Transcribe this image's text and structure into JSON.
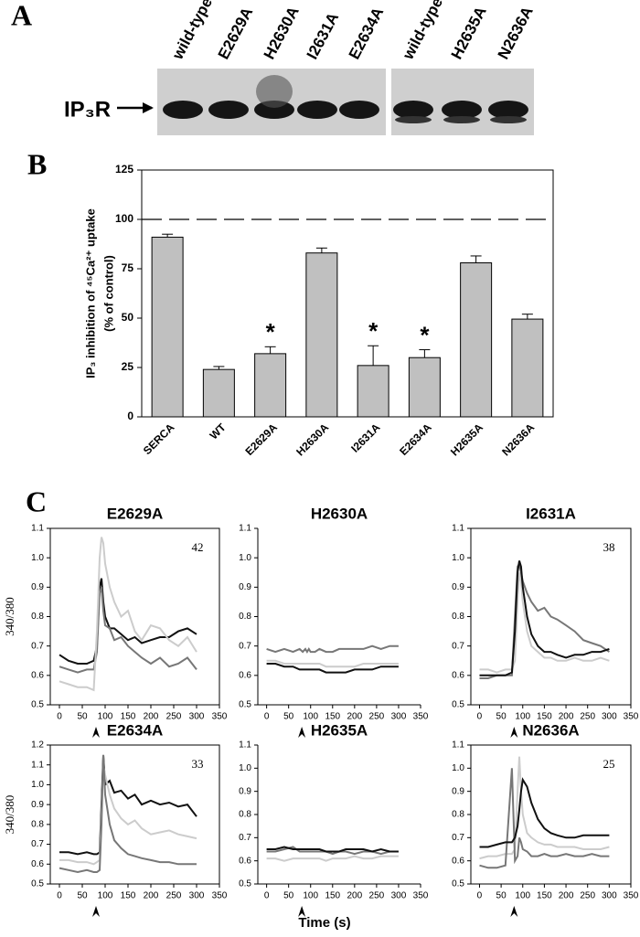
{
  "panel_a": {
    "label": "A",
    "lanes": [
      "wild-type",
      "E2629A",
      "H2630A",
      "I2631A",
      "E2634A",
      "wild-type",
      "H2635A",
      "N2636A"
    ],
    "band_label": "IP₃R"
  },
  "panel_c": {
    "label": "C",
    "x_label": "Time (s)"
  },
  "chart_data": [
    {
      "type": "bar",
      "panel_label": "B",
      "ylabel": [
        "IP₃ inhibition of ⁴⁵Ca²⁺ uptake",
        "(% of control)"
      ],
      "categories": [
        "SERCA",
        "WT",
        "E2629A",
        "H2630A",
        "I2631A",
        "E2634A",
        "H2635A",
        "N2636A"
      ],
      "values": [
        91,
        24,
        32,
        83,
        26,
        30,
        78,
        49.5
      ],
      "errors": [
        1.5,
        1.5,
        3.5,
        2.5,
        10,
        4,
        3.5,
        2.5
      ],
      "significant": [
        false,
        false,
        true,
        false,
        true,
        true,
        false,
        false
      ],
      "significance_label": "*",
      "reference_line": 100,
      "color": "#c0c0c0",
      "ylim": [
        0,
        125
      ],
      "yticks": [
        0,
        25,
        50,
        75,
        100,
        125
      ]
    },
    {
      "type": "line",
      "title": "E2629A",
      "ylabel": "340/380",
      "annotation": "42",
      "frame": true,
      "stimulus": 80,
      "x": [
        0,
        20,
        40,
        60,
        75,
        82,
        88,
        92,
        96,
        100,
        110,
        120,
        135,
        150,
        165,
        180,
        200,
        220,
        240,
        260,
        280,
        300
      ],
      "series": [
        {
          "color": "#111111",
          "values": [
            0.67,
            0.65,
            0.64,
            0.64,
            0.65,
            0.7,
            0.9,
            0.93,
            0.85,
            0.8,
            0.76,
            0.76,
            0.74,
            0.72,
            0.73,
            0.71,
            0.72,
            0.73,
            0.73,
            0.75,
            0.76,
            0.74
          ]
        },
        {
          "color": "#777777",
          "values": [
            0.63,
            0.62,
            0.61,
            0.62,
            0.62,
            0.68,
            0.88,
            0.9,
            0.82,
            0.77,
            0.76,
            0.72,
            0.73,
            0.7,
            0.68,
            0.66,
            0.64,
            0.66,
            0.63,
            0.64,
            0.66,
            0.62
          ]
        },
        {
          "color": "#cccccc",
          "values": [
            0.58,
            0.57,
            0.56,
            0.56,
            0.55,
            0.75,
            1.0,
            1.07,
            1.05,
            0.98,
            0.9,
            0.85,
            0.8,
            0.82,
            0.75,
            0.72,
            0.77,
            0.76,
            0.72,
            0.7,
            0.73,
            0.68
          ]
        }
      ],
      "xlim": [
        -20,
        350
      ],
      "xticks": [
        0,
        50,
        100,
        150,
        200,
        250,
        300,
        350
      ],
      "ylim": [
        0.5,
        1.1
      ],
      "yticks": [
        0.5,
        0.6,
        0.7,
        0.8,
        0.9,
        {
          "value": 1,
          "label": "1.0"
        },
        1.1
      ]
    },
    {
      "type": "line",
      "title": "H2630A",
      "frame": false,
      "stimulus": 80,
      "x": [
        0,
        20,
        40,
        60,
        75,
        82,
        88,
        92,
        96,
        100,
        110,
        120,
        135,
        150,
        165,
        180,
        200,
        220,
        240,
        260,
        280,
        300
      ],
      "series": [
        {
          "color": "#777777",
          "values": [
            0.69,
            0.68,
            0.69,
            0.68,
            0.69,
            0.68,
            0.69,
            0.68,
            0.69,
            0.68,
            0.68,
            0.69,
            0.68,
            0.68,
            0.69,
            0.69,
            0.69,
            0.69,
            0.7,
            0.69,
            0.7,
            0.7
          ]
        },
        {
          "color": "#cccccc",
          "values": [
            0.65,
            0.65,
            0.64,
            0.64,
            0.64,
            0.64,
            0.64,
            0.64,
            0.64,
            0.64,
            0.64,
            0.64,
            0.63,
            0.63,
            0.63,
            0.63,
            0.63,
            0.64,
            0.64,
            0.64,
            0.64,
            0.64
          ]
        },
        {
          "color": "#111111",
          "values": [
            0.64,
            0.64,
            0.63,
            0.63,
            0.62,
            0.62,
            0.62,
            0.62,
            0.62,
            0.62,
            0.62,
            0.62,
            0.61,
            0.61,
            0.61,
            0.61,
            0.62,
            0.62,
            0.62,
            0.63,
            0.63,
            0.63
          ]
        }
      ],
      "xlim": [
        -20,
        350
      ],
      "xticks": [
        0,
        50,
        100,
        150,
        200,
        250,
        300,
        350
      ],
      "ylim": [
        0.5,
        1.1
      ],
      "yticks": [
        0.5,
        0.6,
        0.7,
        0.8,
        0.9,
        {
          "value": 1,
          "label": "1.0"
        },
        1.1
      ]
    },
    {
      "type": "line",
      "title": "I2631A",
      "annotation": "38",
      "frame": true,
      "stimulus": 80,
      "x": [
        0,
        20,
        40,
        60,
        75,
        82,
        88,
        92,
        96,
        100,
        110,
        120,
        135,
        150,
        165,
        180,
        200,
        220,
        240,
        260,
        280,
        300
      ],
      "series": [
        {
          "color": "#cccccc",
          "values": [
            0.62,
            0.62,
            0.61,
            0.62,
            0.62,
            0.65,
            0.85,
            0.95,
            0.92,
            0.85,
            0.75,
            0.7,
            0.68,
            0.66,
            0.66,
            0.65,
            0.65,
            0.66,
            0.65,
            0.65,
            0.66,
            0.65
          ]
        },
        {
          "color": "#777777",
          "values": [
            0.59,
            0.59,
            0.6,
            0.6,
            0.6,
            0.8,
            0.97,
            0.98,
            0.95,
            0.92,
            0.88,
            0.85,
            0.82,
            0.83,
            0.8,
            0.79,
            0.77,
            0.75,
            0.72,
            0.71,
            0.7,
            0.68
          ]
        },
        {
          "color": "#111111",
          "values": [
            0.6,
            0.6,
            0.6,
            0.6,
            0.61,
            0.75,
            0.95,
            0.99,
            0.97,
            0.9,
            0.8,
            0.74,
            0.7,
            0.68,
            0.68,
            0.67,
            0.66,
            0.67,
            0.67,
            0.68,
            0.68,
            0.69
          ]
        }
      ],
      "xlim": [
        -20,
        350
      ],
      "xticks": [
        0,
        50,
        100,
        150,
        200,
        250,
        300,
        350
      ],
      "ylim": [
        0.5,
        1.1
      ],
      "yticks": [
        0.5,
        0.6,
        0.7,
        0.8,
        0.9,
        {
          "value": 1,
          "label": "1.0"
        },
        1.1
      ]
    },
    {
      "type": "line",
      "title": "E2634A",
      "ylabel": "340/380",
      "annotation": "33",
      "frame": true,
      "stimulus": 80,
      "x": [
        0,
        20,
        40,
        60,
        75,
        82,
        88,
        92,
        96,
        100,
        110,
        120,
        135,
        150,
        165,
        180,
        200,
        220,
        240,
        260,
        280,
        300
      ],
      "series": [
        {
          "color": "#111111",
          "values": [
            0.66,
            0.66,
            0.65,
            0.66,
            0.65,
            0.65,
            0.66,
            0.9,
            1.15,
            1.0,
            1.02,
            0.96,
            0.97,
            0.93,
            0.95,
            0.9,
            0.92,
            0.9,
            0.91,
            0.89,
            0.9,
            0.84
          ]
        },
        {
          "color": "#cccccc",
          "values": [
            0.62,
            0.62,
            0.61,
            0.61,
            0.6,
            0.61,
            0.62,
            0.85,
            1.1,
            1.05,
            0.95,
            0.88,
            0.83,
            0.8,
            0.82,
            0.78,
            0.75,
            0.76,
            0.77,
            0.75,
            0.74,
            0.73
          ]
        },
        {
          "color": "#777777",
          "values": [
            0.58,
            0.57,
            0.56,
            0.57,
            0.56,
            0.56,
            0.57,
            0.8,
            1.15,
            0.95,
            0.8,
            0.72,
            0.68,
            0.65,
            0.64,
            0.63,
            0.62,
            0.61,
            0.61,
            0.6,
            0.6,
            0.6
          ]
        }
      ],
      "xlim": [
        -20,
        350
      ],
      "xticks": [
        0,
        50,
        100,
        150,
        200,
        250,
        300,
        350
      ],
      "ylim": [
        0.5,
        1.2
      ],
      "yticks": [
        0.5,
        0.6,
        0.7,
        0.8,
        0.9,
        {
          "value": 1,
          "label": "1.0"
        },
        1.1,
        1.2
      ]
    },
    {
      "type": "line",
      "title": "H2635A",
      "frame": false,
      "stimulus": 80,
      "x": [
        0,
        20,
        40,
        60,
        75,
        82,
        88,
        92,
        96,
        100,
        110,
        120,
        135,
        150,
        165,
        180,
        200,
        220,
        240,
        260,
        280,
        300
      ],
      "series": [
        {
          "color": "#777777",
          "values": [
            0.64,
            0.64,
            0.65,
            0.66,
            0.64,
            0.64,
            0.64,
            0.64,
            0.64,
            0.64,
            0.64,
            0.64,
            0.64,
            0.63,
            0.64,
            0.64,
            0.63,
            0.64,
            0.64,
            0.63,
            0.64,
            0.64
          ]
        },
        {
          "color": "#111111",
          "values": [
            0.65,
            0.65,
            0.66,
            0.65,
            0.65,
            0.65,
            0.65,
            0.65,
            0.65,
            0.65,
            0.65,
            0.65,
            0.64,
            0.64,
            0.64,
            0.65,
            0.65,
            0.65,
            0.64,
            0.65,
            0.64,
            0.64
          ]
        },
        {
          "color": "#cccccc",
          "values": [
            0.61,
            0.61,
            0.6,
            0.61,
            0.61,
            0.61,
            0.61,
            0.61,
            0.61,
            0.61,
            0.61,
            0.61,
            0.6,
            0.61,
            0.61,
            0.61,
            0.62,
            0.61,
            0.61,
            0.62,
            0.62,
            0.62
          ]
        }
      ],
      "xlim": [
        -20,
        350
      ],
      "xticks": [
        0,
        50,
        100,
        150,
        200,
        250,
        300,
        350
      ],
      "ylim": [
        0.5,
        1.1
      ],
      "yticks": [
        0.5,
        0.6,
        0.7,
        0.8,
        0.9,
        {
          "value": 1,
          "label": "1.0"
        },
        1.1
      ]
    },
    {
      "type": "line",
      "title": "N2636A",
      "annotation": "25",
      "frame": true,
      "stimulus": 80,
      "x": [
        0,
        20,
        40,
        60,
        75,
        82,
        88,
        92,
        96,
        100,
        110,
        120,
        135,
        150,
        165,
        180,
        200,
        220,
        240,
        260,
        280,
        300
      ],
      "series": [
        {
          "color": "#cccccc",
          "values": [
            0.61,
            0.62,
            0.62,
            0.63,
            0.63,
            0.65,
            0.9,
            1.05,
            0.9,
            0.8,
            0.72,
            0.7,
            0.68,
            0.67,
            0.67,
            0.66,
            0.66,
            0.66,
            0.65,
            0.65,
            0.65,
            0.66
          ]
        },
        {
          "color": "#777777",
          "values": [
            0.58,
            0.57,
            0.57,
            0.58,
            1.0,
            0.6,
            0.62,
            0.7,
            0.68,
            0.65,
            0.64,
            0.62,
            0.62,
            0.63,
            0.62,
            0.62,
            0.63,
            0.62,
            0.62,
            0.63,
            0.62,
            0.62
          ]
        },
        {
          "color": "#111111",
          "values": [
            0.66,
            0.66,
            0.67,
            0.68,
            0.68,
            0.7,
            0.75,
            0.82,
            0.9,
            0.95,
            0.92,
            0.85,
            0.78,
            0.74,
            0.72,
            0.71,
            0.7,
            0.7,
            0.71,
            0.71,
            0.71,
            0.71
          ]
        }
      ],
      "xlim": [
        -20,
        350
      ],
      "xticks": [
        0,
        50,
        100,
        150,
        200,
        250,
        300,
        350
      ],
      "ylim": [
        0.5,
        1.1
      ],
      "yticks": [
        0.5,
        0.6,
        0.7,
        0.8,
        0.9,
        {
          "value": 1,
          "label": "1.0"
        },
        1.1
      ]
    }
  ]
}
